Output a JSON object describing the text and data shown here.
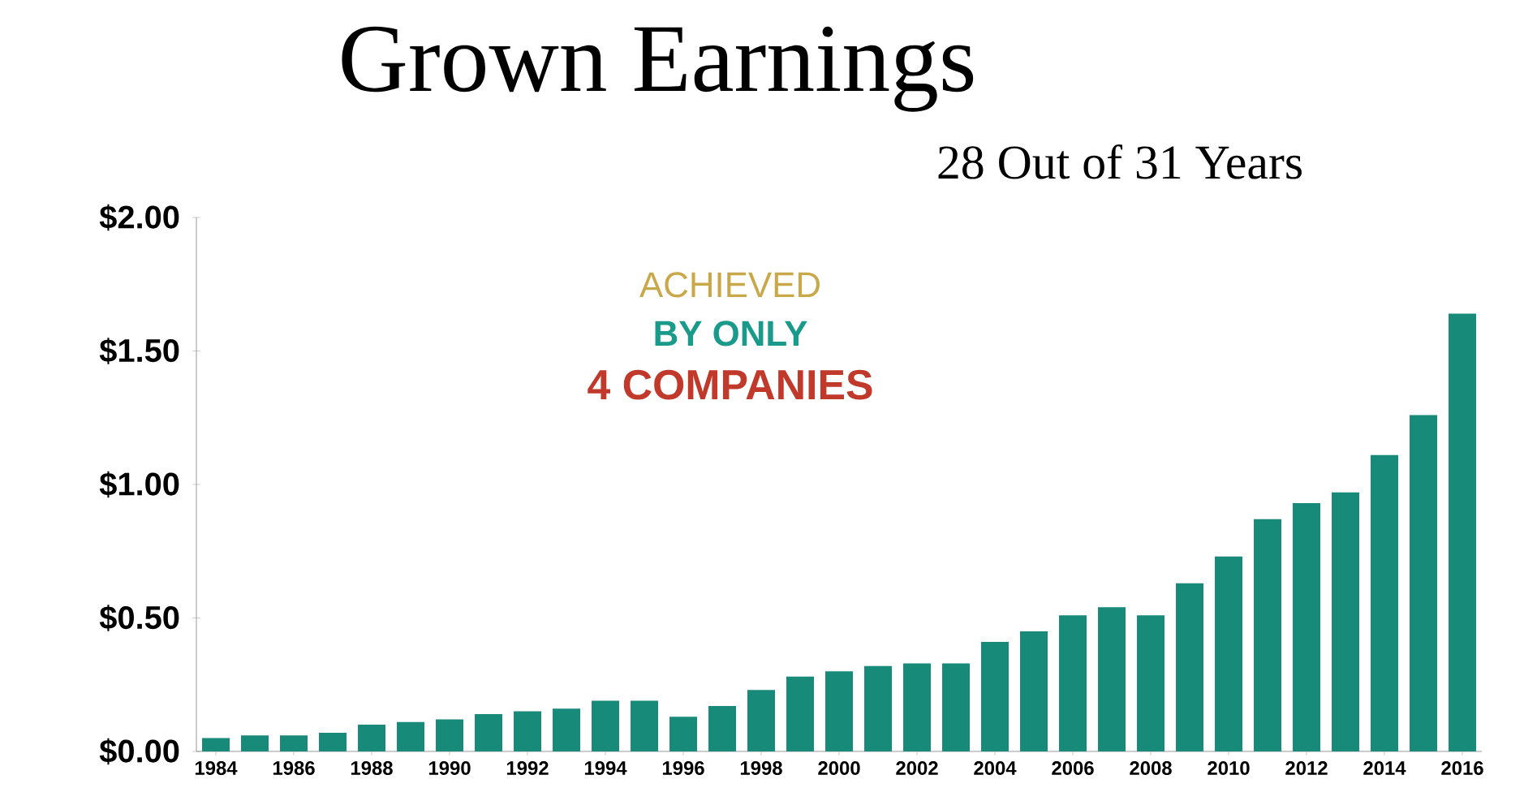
{
  "chart_data": {
    "type": "bar",
    "title": "Grown Earnings",
    "subtitle": "28 Out of 31 Years",
    "annotations": [
      "ACHIEVED",
      "BY ONLY",
      "4 COMPANIES"
    ],
    "categories": [
      "1984",
      null,
      "1986",
      null,
      "1988",
      null,
      "1990",
      null,
      "1992",
      null,
      "1994",
      null,
      "1996",
      null,
      "1998",
      null,
      "2000",
      null,
      "2002",
      null,
      "2004",
      null,
      "2006",
      null,
      "2008",
      null,
      "2010",
      null,
      "2012",
      null,
      "2014",
      null,
      "2016"
    ],
    "values": [
      0.05,
      0.06,
      0.06,
      0.07,
      0.1,
      0.11,
      0.12,
      0.14,
      0.15,
      0.16,
      0.19,
      0.19,
      0.13,
      0.17,
      0.23,
      0.28,
      0.3,
      0.32,
      0.33,
      0.33,
      0.41,
      0.45,
      0.51,
      0.54,
      0.51,
      0.63,
      0.73,
      0.87,
      0.93,
      0.97,
      1.11,
      1.26,
      1.64
    ],
    "color": "#178a7a",
    "ylim": [
      0,
      2
    ],
    "yticks": [
      {
        "value": 0,
        "label": "$0.00"
      },
      {
        "value": 0.5,
        "label": "$0.50"
      },
      {
        "value": 1,
        "label": "$1.00"
      },
      {
        "value": 1.5,
        "label": "$1.50"
      },
      {
        "value": 2,
        "label": "$2.00"
      }
    ],
    "grid": false
  }
}
